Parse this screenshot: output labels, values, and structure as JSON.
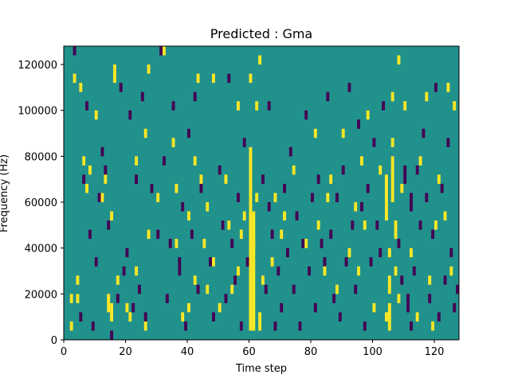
{
  "chart_data": {
    "type": "heatmap",
    "title": "Predicted : Gma",
    "xlabel": "Time step",
    "ylabel": "Frequency (Hz)",
    "xlim": [
      0,
      128
    ],
    "ylim": [
      0,
      128000
    ],
    "x_ticks": [
      0,
      20,
      40,
      60,
      80,
      100,
      120
    ],
    "y_ticks": [
      0,
      20000,
      40000,
      60000,
      80000,
      100000,
      120000
    ],
    "colormap": "viridis",
    "colors": {
      "low": "#440154",
      "mid": "#21918c",
      "high": "#fde725",
      "frame": "#000000"
    },
    "background_level": "mid",
    "bin_width_time_steps": 1,
    "bin_height_hz": 4000,
    "notes_high": [
      [
        2,
        4000,
        8000
      ],
      [
        2,
        16000,
        20000
      ],
      [
        3,
        112000,
        116000
      ],
      [
        4,
        16000,
        20000
      ],
      [
        4,
        24000,
        28000
      ],
      [
        5,
        108000,
        112000
      ],
      [
        6,
        76000,
        80000
      ],
      [
        7,
        64000,
        68000
      ],
      [
        8,
        72000,
        76000
      ],
      [
        10,
        96000,
        100000
      ],
      [
        12,
        60000,
        64000
      ],
      [
        13,
        68000,
        72000
      ],
      [
        14,
        12000,
        20000
      ],
      [
        15,
        8000,
        16000
      ],
      [
        15,
        52000,
        56000
      ],
      [
        16,
        112000,
        120000
      ],
      [
        17,
        24000,
        28000
      ],
      [
        20,
        12000,
        16000
      ],
      [
        21,
        8000,
        12000
      ],
      [
        23,
        28000,
        32000
      ],
      [
        23,
        76000,
        80000
      ],
      [
        26,
        4000,
        8000
      ],
      [
        26,
        88000,
        92000
      ],
      [
        27,
        116000,
        120000
      ],
      [
        27,
        44000,
        48000
      ],
      [
        30,
        60000,
        64000
      ],
      [
        32,
        124000,
        128000
      ],
      [
        35,
        84000,
        88000
      ],
      [
        36,
        40000,
        44000
      ],
      [
        36,
        64000,
        68000
      ],
      [
        38,
        8000,
        12000
      ],
      [
        40,
        52000,
        56000
      ],
      [
        40,
        12000,
        16000
      ],
      [
        42,
        24000,
        28000
      ],
      [
        42,
        76000,
        80000
      ],
      [
        43,
        112000,
        116000
      ],
      [
        44,
        68000,
        72000
      ],
      [
        45,
        40000,
        44000
      ],
      [
        46,
        56000,
        60000
      ],
      [
        46,
        20000,
        24000
      ],
      [
        48,
        32000,
        36000
      ],
      [
        48,
        112000,
        116000
      ],
      [
        50,
        12000,
        16000
      ],
      [
        52,
        68000,
        72000
      ],
      [
        53,
        48000,
        52000
      ],
      [
        54,
        20000,
        24000
      ],
      [
        56,
        28000,
        32000
      ],
      [
        56,
        100000,
        104000
      ],
      [
        57,
        44000,
        48000
      ],
      [
        58,
        52000,
        56000
      ],
      [
        60,
        72000,
        84000
      ],
      [
        60,
        112000,
        116000
      ],
      [
        60,
        4000,
        72000
      ],
      [
        61,
        40000,
        44000
      ],
      [
        61,
        4000,
        56000
      ],
      [
        62,
        60000,
        64000
      ],
      [
        62,
        100000,
        104000
      ],
      [
        63,
        4000,
        12000
      ],
      [
        63,
        120000,
        124000
      ],
      [
        64,
        24000,
        28000
      ],
      [
        67,
        32000,
        36000
      ],
      [
        68,
        60000,
        64000
      ],
      [
        70,
        44000,
        48000
      ],
      [
        71,
        52000,
        56000
      ],
      [
        74,
        72000,
        76000
      ],
      [
        78,
        40000,
        44000
      ],
      [
        81,
        88000,
        92000
      ],
      [
        82,
        48000,
        52000
      ],
      [
        84,
        28000,
        32000
      ],
      [
        85,
        60000,
        64000
      ],
      [
        86,
        68000,
        72000
      ],
      [
        88,
        20000,
        24000
      ],
      [
        90,
        88000,
        92000
      ],
      [
        92,
        36000,
        40000
      ],
      [
        94,
        56000,
        60000
      ],
      [
        95,
        28000,
        32000
      ],
      [
        96,
        76000,
        80000
      ],
      [
        97,
        48000,
        52000
      ],
      [
        98,
        96000,
        100000
      ],
      [
        100,
        12000,
        16000
      ],
      [
        102,
        72000,
        76000
      ],
      [
        104,
        8000,
        12000
      ],
      [
        104,
        52000,
        72000
      ],
      [
        105,
        36000,
        40000
      ],
      [
        105,
        20000,
        28000
      ],
      [
        105,
        4000,
        16000
      ],
      [
        106,
        60000,
        80000
      ],
      [
        106,
        84000,
        88000
      ],
      [
        106,
        104000,
        108000
      ],
      [
        107,
        44000,
        52000
      ],
      [
        107,
        28000,
        32000
      ],
      [
        108,
        16000,
        20000
      ],
      [
        108,
        120000,
        124000
      ],
      [
        109,
        64000,
        68000
      ],
      [
        110,
        100000,
        104000
      ],
      [
        112,
        36000,
        40000
      ],
      [
        114,
        8000,
        12000
      ],
      [
        115,
        76000,
        80000
      ],
      [
        117,
        104000,
        108000
      ],
      [
        118,
        24000,
        28000
      ],
      [
        119,
        4000,
        8000
      ],
      [
        120,
        48000,
        52000
      ],
      [
        121,
        68000,
        72000
      ],
      [
        123,
        52000,
        56000
      ],
      [
        124,
        108000,
        112000
      ],
      [
        125,
        28000,
        32000
      ],
      [
        126,
        100000,
        104000
      ]
    ],
    "notes_low": [
      [
        3,
        124000,
        128000
      ],
      [
        5,
        8000,
        12000
      ],
      [
        6,
        68000,
        72000
      ],
      [
        7,
        100000,
        104000
      ],
      [
        8,
        44000,
        48000
      ],
      [
        9,
        4000,
        8000
      ],
      [
        10,
        32000,
        36000
      ],
      [
        11,
        60000,
        64000
      ],
      [
        12,
        80000,
        84000
      ],
      [
        13,
        72000,
        76000
      ],
      [
        14,
        48000,
        52000
      ],
      [
        15,
        0,
        4000
      ],
      [
        17,
        16000,
        20000
      ],
      [
        18,
        108000,
        112000
      ],
      [
        19,
        28000,
        32000
      ],
      [
        20,
        36000,
        40000
      ],
      [
        21,
        96000,
        100000
      ],
      [
        22,
        12000,
        16000
      ],
      [
        23,
        68000,
        72000
      ],
      [
        24,
        20000,
        24000
      ],
      [
        25,
        104000,
        108000
      ],
      [
        26,
        8000,
        12000
      ],
      [
        28,
        64000,
        68000
      ],
      [
        30,
        44000,
        48000
      ],
      [
        31,
        124000,
        128000
      ],
      [
        32,
        76000,
        80000
      ],
      [
        33,
        16000,
        20000
      ],
      [
        34,
        40000,
        44000
      ],
      [
        35,
        100000,
        104000
      ],
      [
        37,
        28000,
        36000
      ],
      [
        38,
        56000,
        60000
      ],
      [
        39,
        4000,
        8000
      ],
      [
        40,
        88000,
        92000
      ],
      [
        41,
        44000,
        48000
      ],
      [
        42,
        104000,
        108000
      ],
      [
        43,
        20000,
        24000
      ],
      [
        44,
        64000,
        68000
      ],
      [
        47,
        32000,
        36000
      ],
      [
        48,
        8000,
        12000
      ],
      [
        50,
        72000,
        76000
      ],
      [
        51,
        48000,
        52000
      ],
      [
        52,
        16000,
        20000
      ],
      [
        53,
        112000,
        116000
      ],
      [
        54,
        40000,
        44000
      ],
      [
        55,
        24000,
        28000
      ],
      [
        56,
        60000,
        64000
      ],
      [
        57,
        4000,
        8000
      ],
      [
        58,
        84000,
        88000
      ],
      [
        59,
        32000,
        36000
      ],
      [
        64,
        68000,
        72000
      ],
      [
        65,
        20000,
        24000
      ],
      [
        66,
        56000,
        60000
      ],
      [
        66,
        100000,
        104000
      ],
      [
        67,
        44000,
        48000
      ],
      [
        68,
        4000,
        8000
      ],
      [
        69,
        28000,
        32000
      ],
      [
        70,
        12000,
        16000
      ],
      [
        71,
        64000,
        68000
      ],
      [
        72,
        36000,
        40000
      ],
      [
        73,
        80000,
        84000
      ],
      [
        74,
        20000,
        24000
      ],
      [
        75,
        52000,
        56000
      ],
      [
        76,
        4000,
        8000
      ],
      [
        77,
        40000,
        44000
      ],
      [
        78,
        96000,
        100000
      ],
      [
        79,
        28000,
        32000
      ],
      [
        80,
        60000,
        64000
      ],
      [
        81,
        12000,
        16000
      ],
      [
        82,
        68000,
        72000
      ],
      [
        83,
        40000,
        44000
      ],
      [
        84,
        32000,
        36000
      ],
      [
        85,
        104000,
        108000
      ],
      [
        86,
        44000,
        48000
      ],
      [
        87,
        16000,
        20000
      ],
      [
        88,
        60000,
        64000
      ],
      [
        89,
        8000,
        12000
      ],
      [
        90,
        72000,
        76000
      ],
      [
        91,
        32000,
        36000
      ],
      [
        92,
        108000,
        112000
      ],
      [
        93,
        48000,
        52000
      ],
      [
        94,
        20000,
        24000
      ],
      [
        95,
        92000,
        96000
      ],
      [
        96,
        56000,
        60000
      ],
      [
        97,
        4000,
        8000
      ],
      [
        98,
        64000,
        68000
      ],
      [
        99,
        32000,
        36000
      ],
      [
        100,
        84000,
        88000
      ],
      [
        101,
        48000,
        52000
      ],
      [
        102,
        36000,
        40000
      ],
      [
        103,
        100000,
        104000
      ],
      [
        108,
        40000,
        44000
      ],
      [
        109,
        24000,
        28000
      ],
      [
        110,
        68000,
        76000
      ],
      [
        111,
        12000,
        20000
      ],
      [
        112,
        4000,
        8000
      ],
      [
        112,
        56000,
        64000
      ],
      [
        113,
        28000,
        32000
      ],
      [
        114,
        72000,
        76000
      ],
      [
        115,
        48000,
        52000
      ],
      [
        116,
        88000,
        92000
      ],
      [
        117,
        60000,
        64000
      ],
      [
        118,
        16000,
        20000
      ],
      [
        119,
        44000,
        48000
      ],
      [
        120,
        108000,
        112000
      ],
      [
        121,
        8000,
        12000
      ],
      [
        122,
        64000,
        68000
      ],
      [
        123,
        24000,
        28000
      ],
      [
        124,
        84000,
        88000
      ],
      [
        125,
        36000,
        40000
      ],
      [
        126,
        12000,
        16000
      ],
      [
        127,
        20000,
        24000
      ]
    ]
  }
}
